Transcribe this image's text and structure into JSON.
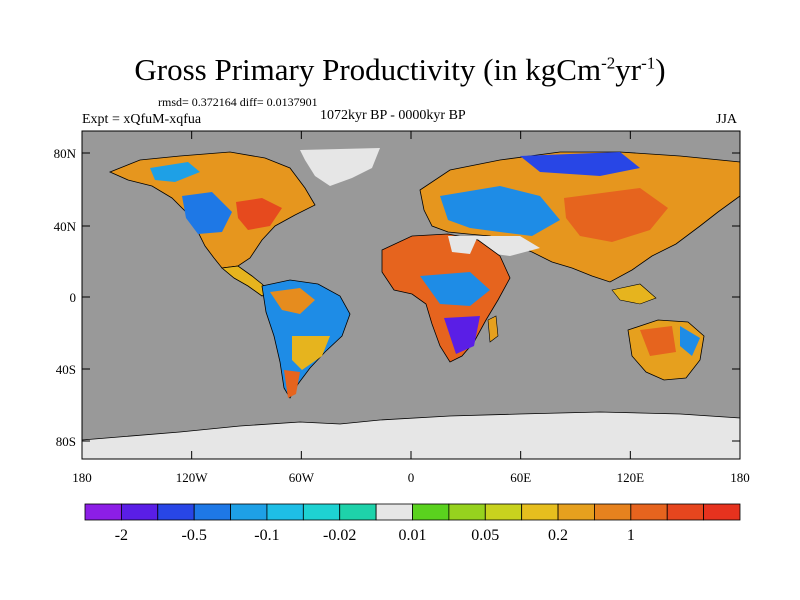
{
  "title": {
    "main": "Gross Primary Productivity (in kgCm",
    "sup1": "-2",
    "mid": "yr",
    "sup2": "-1",
    "end": ")"
  },
  "stats_text": "rmsd= 0.372164 diff= 0.0137901",
  "left_label": "Expt = xQfuM-xqfua",
  "center_label": "1072kyr BP - 0000kyr BP",
  "right_label": "JJA",
  "lat_ticks": [
    "80N",
    "40N",
    "0",
    "40S",
    "80S"
  ],
  "lon_ticks": [
    "180",
    "120W",
    "60W",
    "0",
    "60E",
    "120E",
    "180"
  ],
  "colorbar": {
    "colors": [
      "#8c1ee6",
      "#5a1ee6",
      "#2846e6",
      "#1e78e6",
      "#1ea0e6",
      "#1ebee6",
      "#1ed2d2",
      "#1ed2aa",
      "#e6e6e6",
      "#5ad21e",
      "#96d21e",
      "#c8d21e",
      "#e6be1e",
      "#e6a01e",
      "#e6821e",
      "#e6641e",
      "#e6461e",
      "#e6321e"
    ],
    "labels": [
      "-2",
      "-0.5",
      "-0.1",
      "-0.02",
      "0.01",
      "0.05",
      "0.2",
      "1"
    ]
  },
  "colors": {
    "ocean": "#999999",
    "ice": "#e6e6e6"
  }
}
